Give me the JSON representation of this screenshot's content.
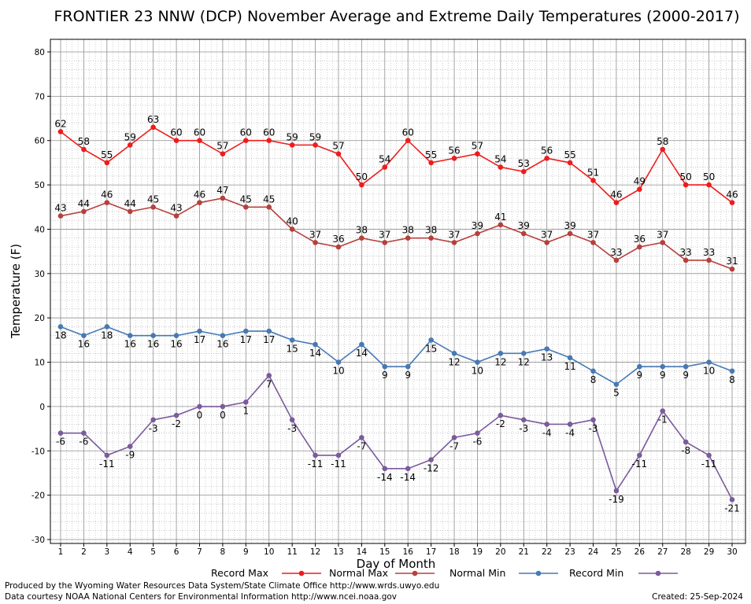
{
  "chart_data": {
    "type": "line",
    "title": "FRONTIER 23 NNW (DCP) November Average and Extreme Daily Temperatures (2000-2017)",
    "xlabel": "Day of Month",
    "ylabel": "Temperature (F)",
    "ylim": [
      -30,
      80
    ],
    "yticks": [
      -30,
      -20,
      -10,
      0,
      10,
      20,
      30,
      40,
      50,
      60,
      70,
      80
    ],
    "xlim": [
      1,
      30
    ],
    "x": [
      1,
      2,
      3,
      4,
      5,
      6,
      7,
      8,
      9,
      10,
      11,
      12,
      13,
      14,
      15,
      16,
      17,
      18,
      19,
      20,
      21,
      22,
      23,
      24,
      25,
      26,
      27,
      28,
      29,
      30
    ],
    "grid": true,
    "legend_position": "bottom",
    "series": [
      {
        "name": "Record Max",
        "color": "#ee1c1c",
        "values": [
          62,
          58,
          55,
          59,
          63,
          60,
          60,
          57,
          60,
          60,
          59,
          59,
          57,
          50,
          54,
          60,
          55,
          56,
          57,
          54,
          53,
          56,
          55,
          51,
          46,
          49,
          58,
          50,
          50,
          46
        ]
      },
      {
        "name": "Normal Max",
        "color": "#b5403c",
        "values": [
          43,
          44,
          46,
          44,
          45,
          43,
          46,
          47,
          45,
          45,
          40,
          37,
          36,
          38,
          37,
          38,
          38,
          37,
          39,
          41,
          39,
          37,
          39,
          37,
          33,
          36,
          37,
          33,
          33,
          31
        ]
      },
      {
        "name": "Normal Min",
        "color": "#4779b3",
        "values": [
          18,
          16,
          18,
          16,
          16,
          16,
          17,
          16,
          17,
          17,
          15,
          14,
          10,
          14,
          9,
          9,
          15,
          12,
          10,
          12,
          12,
          13,
          11,
          8,
          5,
          9,
          9,
          9,
          10,
          8
        ]
      },
      {
        "name": "Record Min",
        "color": "#7b5a9d",
        "values": [
          -6,
          -6,
          -11,
          -9,
          -3,
          -2,
          0,
          0,
          1,
          7,
          -3,
          -11,
          -11,
          -7,
          -14,
          -14,
          -12,
          -7,
          -6,
          -2,
          -3,
          -4,
          -4,
          -3,
          -19,
          -11,
          -1,
          -8,
          -11,
          -21
        ]
      }
    ]
  },
  "footer": {
    "credit_line1": "Produced by the Wyoming Water Resources Data System/State Climate Office http://www.wrds.uwyo.edu",
    "credit_line2": "Data courtesy NOAA National Centers for Environmental Information http://www.ncei.noaa.gov",
    "created": "Created:  25-Sep-2024"
  }
}
